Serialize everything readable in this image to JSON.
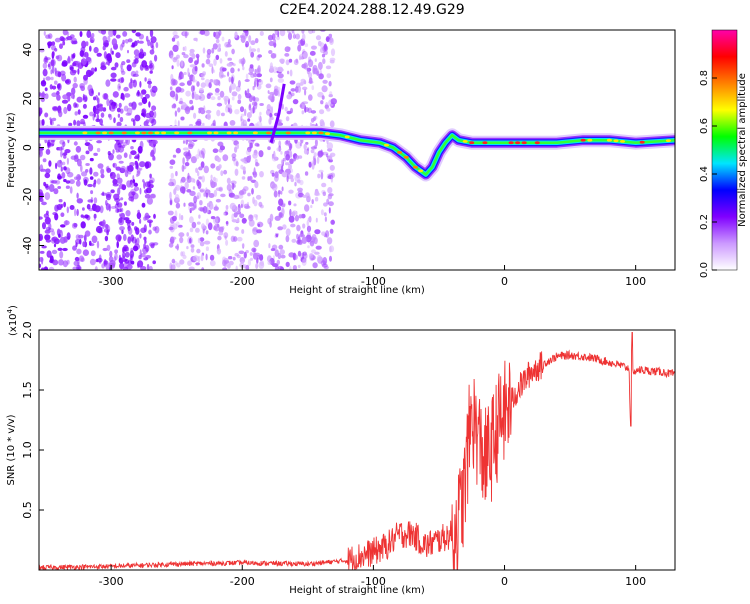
{
  "title": "C2E4.2024.288.12.49.G29",
  "chart_data": [
    {
      "type": "heatmap",
      "xlabel": "Height of straight line (km)",
      "ylabel": "Frequency (Hz)",
      "xlim": [
        -355,
        130
      ],
      "ylim": [
        -50,
        48
      ],
      "xticks": [
        -300,
        -200,
        -100,
        0,
        100
      ],
      "yticks": [
        -40,
        -20,
        0,
        20,
        40
      ],
      "colorbar": {
        "label": "Normalized spectral amplitude",
        "range": [
          0,
          1
        ],
        "ticks": [
          "0.0",
          "0.2",
          "0.4",
          "0.6",
          "0.8"
        ],
        "tick_values": [
          0,
          0.2,
          0.4,
          0.6,
          0.8
        ],
        "colors": [
          "#ffffff",
          "#cc99ff",
          "#8000ff",
          "#0000ff",
          "#00e5ff",
          "#00ff00",
          "#ffff00",
          "#ff8000",
          "#ff0000",
          "#ff00aa"
        ]
      },
      "noise_regions_x": [
        [
          -355,
          -265
        ],
        [
          -255,
          -185
        ],
        [
          -180,
          -130
        ]
      ],
      "ridge": {
        "x": [
          -355,
          -300,
          -265,
          -230,
          -200,
          -170,
          -140,
          -125,
          -110,
          -95,
          -85,
          -75,
          -68,
          -60,
          -55,
          -50,
          -45,
          -40,
          -35,
          -25,
          -10,
          10,
          40,
          60,
          80,
          100,
          130
        ],
        "y": [
          6,
          6,
          6,
          6,
          6,
          6,
          6,
          5,
          3,
          2,
          0,
          -4,
          -8,
          -11,
          -8,
          -2,
          2,
          5,
          3,
          2,
          2,
          2,
          2,
          3,
          3,
          2,
          3
        ]
      }
    },
    {
      "type": "line",
      "xlabel": "Height of straight line (km)",
      "ylabel": "SNR (10 * v/v)",
      "multiplier": "(x10",
      "multiplier_exp": "4",
      "multiplier_close": ")",
      "xlim": [
        -355,
        130
      ],
      "ylim": [
        0,
        2.0
      ],
      "xticks": [
        -300,
        -200,
        -100,
        0,
        100
      ],
      "yticks": [
        "0.5",
        "1.0",
        "1.5",
        "2.0"
      ],
      "ytick_values": [
        0.5,
        1.0,
        1.5,
        2.0
      ],
      "series_color": "#ee3333",
      "series": [
        {
          "x": [
            -355,
            -300,
            -250,
            -200,
            -150,
            -120,
            -100,
            -90,
            -80,
            -70,
            -60,
            -50,
            -40,
            -35,
            -30,
            -28,
            -25,
            -20,
            -15,
            -10,
            -5,
            0,
            10,
            20,
            30,
            40,
            50,
            60,
            70,
            80,
            90,
            95,
            96,
            97,
            98,
            100,
            110,
            120,
            130
          ],
          "y": [
            0.02,
            0.03,
            0.05,
            0.06,
            0.05,
            0.08,
            0.15,
            0.2,
            0.3,
            0.3,
            0.2,
            0.25,
            0.3,
            0.4,
            0.7,
            1.0,
            1.3,
            1.1,
            0.9,
            1.0,
            1.2,
            1.3,
            1.5,
            1.65,
            1.72,
            1.78,
            1.79,
            1.78,
            1.76,
            1.73,
            1.7,
            1.68,
            1.2,
            1.95,
            1.6,
            1.67,
            1.66,
            1.65,
            1.63
          ]
        }
      ]
    }
  ]
}
